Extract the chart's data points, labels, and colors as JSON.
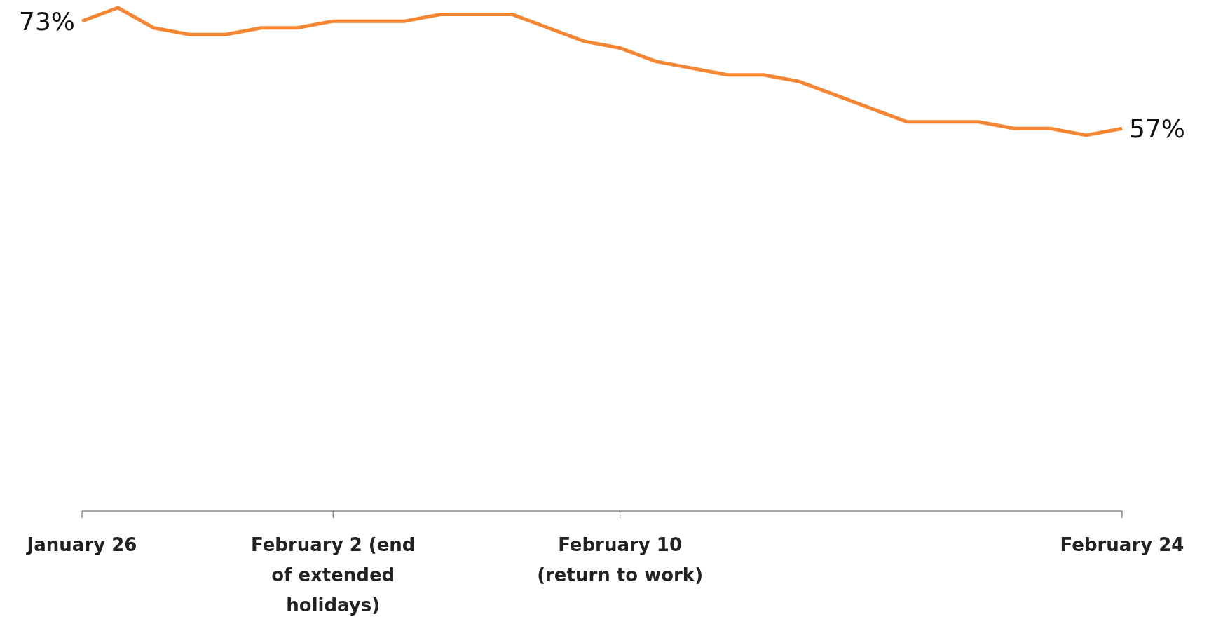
{
  "chart_data": {
    "type": "line",
    "x": [
      "--01-26",
      "--01-27",
      "--01-28",
      "--01-29",
      "--01-30",
      "--01-31",
      "--02-01",
      "--02-02",
      "--02-03",
      "--02-04",
      "--02-05",
      "--02-06",
      "--02-07",
      "--02-08",
      "--02-09",
      "--02-10",
      "--02-11",
      "--02-12",
      "--02-13",
      "--02-14",
      "--02-15",
      "--02-16",
      "--02-17",
      "--02-18",
      "--02-19",
      "--02-20",
      "--02-21",
      "--02-22",
      "--02-23",
      "--02-24"
    ],
    "series": [
      {
        "color": "#f58634",
        "values": [
          73,
          75,
          72,
          71,
          71,
          72,
          72,
          73,
          73,
          73,
          74,
          74,
          74,
          72,
          70,
          69,
          67,
          66,
          65,
          65,
          64,
          62,
          60,
          58,
          58,
          58,
          57,
          57,
          56,
          57
        ],
        "value_labels": [
          "73%",
          null,
          null,
          null,
          null,
          null,
          null,
          null,
          null,
          null,
          null,
          null,
          null,
          null,
          null,
          null,
          null,
          null,
          null,
          null,
          null,
          null,
          null,
          null,
          null,
          null,
          null,
          null,
          null,
          "57%"
        ]
      }
    ],
    "xlim": [
      "--01-26",
      "--02-24"
    ],
    "xticks": [
      {
        "value": "--01-26",
        "label": "January 26"
      },
      {
        "value": "--02-02",
        "label": "February 2 (end of extended holidays)"
      },
      {
        "value": "--02-10",
        "label": "February 10 (return to work)"
      },
      {
        "value": "--02-24",
        "label": "February 24"
      }
    ],
    "tick_labels": "x",
    "marker": "none",
    "line_style": "solid"
  }
}
